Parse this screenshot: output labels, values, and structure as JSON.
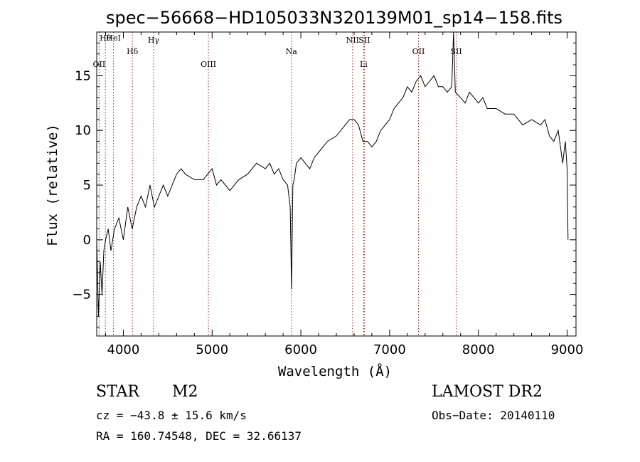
{
  "chart_data": {
    "type": "line",
    "title": "spec−56668−HD105033N320139M01_sp14−158.fits",
    "xlabel": "Wavelength (Å)",
    "ylabel": "Flux (relative)",
    "xlim": [
      3700,
      9100
    ],
    "ylim": [
      -8.8,
      19.0
    ],
    "xticks": [
      4000,
      5000,
      6000,
      7000,
      8000,
      9000
    ],
    "yticks": [
      -5,
      0,
      5,
      10,
      15
    ],
    "ytick_labels": [
      "−5",
      "0",
      "5",
      "10",
      "15"
    ],
    "grid": false,
    "legend": "none",
    "line_color": "#000000",
    "marker_color": "#b22222",
    "series": [
      {
        "x": [
          3700,
          3720,
          3740,
          3760,
          3780,
          3800,
          3830,
          3860,
          3900,
          3950,
          4000,
          4050,
          4100,
          4150,
          4200,
          4250,
          4300,
          4350,
          4400,
          4450,
          4500,
          4550,
          4600,
          4650,
          4700,
          4800,
          4900,
          4950,
          5000,
          5050,
          5100,
          5150,
          5200,
          5300,
          5400,
          5500,
          5600,
          5650,
          5700,
          5750,
          5800,
          5850,
          5880,
          5895,
          5910,
          5925,
          5950,
          6000,
          6050,
          6100,
          6150,
          6200,
          6300,
          6400,
          6500,
          6550,
          6600,
          6650,
          6700,
          6750,
          6800,
          6850,
          6900,
          6950,
          7000,
          7050,
          7100,
          7150,
          7200,
          7250,
          7300,
          7350,
          7400,
          7450,
          7500,
          7550,
          7600,
          7650,
          7700,
          7720,
          7740,
          7800,
          7850,
          7900,
          7950,
          8000,
          8050,
          8100,
          8200,
          8300,
          8400,
          8500,
          8600,
          8700,
          8750,
          8800,
          8850,
          8900,
          8950,
          8980,
          9000,
          9010
        ],
        "y": [
          0,
          -7,
          -2,
          -5,
          -1,
          0,
          1,
          -1,
          1,
          2,
          0,
          3,
          1,
          3,
          4,
          3,
          5,
          3,
          4,
          5,
          4,
          5,
          6,
          6.5,
          6,
          5.5,
          5.5,
          6,
          6.5,
          5,
          5.5,
          5,
          4.5,
          5.5,
          6,
          7,
          6.5,
          7,
          6,
          6.5,
          5.5,
          5,
          3,
          -4.5,
          5,
          5.5,
          7,
          7.5,
          7,
          6.5,
          7.5,
          8,
          9,
          9.5,
          10.5,
          11,
          11,
          10.5,
          9,
          9,
          8.5,
          9,
          10,
          10.5,
          11,
          12,
          12.5,
          13,
          14,
          13.5,
          14.5,
          15,
          14,
          14.5,
          15,
          14,
          14,
          13.5,
          14,
          19,
          13.5,
          13,
          12.5,
          13.5,
          13,
          12.5,
          13,
          12,
          12,
          11.5,
          11.5,
          10.5,
          11,
          10.5,
          11,
          9.5,
          9,
          10,
          7,
          9,
          6.5,
          0
        ]
      }
    ],
    "lines": [
      {
        "label": "Hθ",
        "x": 3798
      },
      {
        "label": "OII",
        "x": 3727
      },
      {
        "label": "HeI",
        "x": 3889
      },
      {
        "label": "Hδ",
        "x": 4102
      },
      {
        "label": "Hγ",
        "x": 4340
      },
      {
        "label": "OIII",
        "x": 4959
      },
      {
        "label": "Na",
        "x": 5893
      },
      {
        "label": "NII",
        "x": 6583
      },
      {
        "label": "SII",
        "x": 6716
      },
      {
        "label": "Li",
        "x": 6708
      },
      {
        "label": "OII",
        "x": 7325
      },
      {
        "label": "SII",
        "x": 7751
      }
    ]
  },
  "info": {
    "class": "STAR",
    "subclass": "M2",
    "survey": "LAMOST DR2",
    "cz": "cz = −43.8 ± 15.6 km/s",
    "obs_date": "Obs−Date: 20140110",
    "radec": "RA = 160.74548, DEC =  32.66137"
  }
}
